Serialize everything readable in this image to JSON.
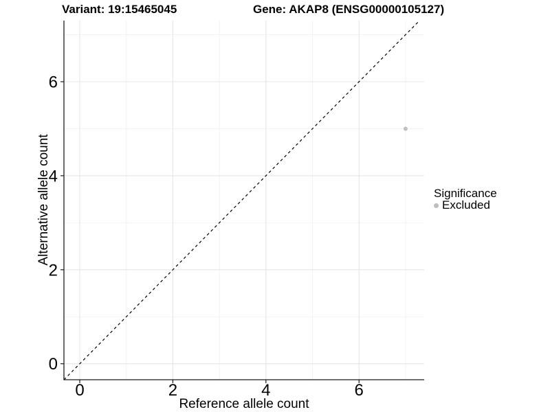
{
  "title": {
    "left": "Variant: 19:15465045",
    "right": "Gene: AKAP8 (ENSG00000105127)"
  },
  "chart_data": {
    "type": "scatter",
    "title": "Variant: 19:15465045   Gene: AKAP8 (ENSG00000105127)",
    "xlabel": "Reference allele count",
    "ylabel": "Alternative allele count",
    "xlim": [
      -0.34,
      7.4
    ],
    "ylim": [
      -0.34,
      7.3
    ],
    "x_ticks": [
      0,
      2,
      4,
      6
    ],
    "y_ticks": [
      0,
      2,
      4,
      6
    ],
    "grid_major": [
      0,
      2,
      4,
      6
    ],
    "grid_minor": [
      1,
      3,
      5,
      7
    ],
    "series": [
      {
        "name": "Excluded",
        "points": [
          {
            "x": 7,
            "y": 5
          }
        ]
      }
    ],
    "identity_line": {
      "slope": 1,
      "intercept": 0,
      "style": "dashed"
    },
    "legend": {
      "position": "right",
      "title": "Significance",
      "items": [
        {
          "label": "Excluded",
          "color": "#bebebe"
        }
      ]
    },
    "colors": {
      "point": "#bebebe",
      "grid_major": "#e5e5e5",
      "grid_minor": "#f1f1f1",
      "axis_line": "#1a1a1a",
      "tick_text": "#000000",
      "abline": "#000000"
    },
    "grid": true
  }
}
